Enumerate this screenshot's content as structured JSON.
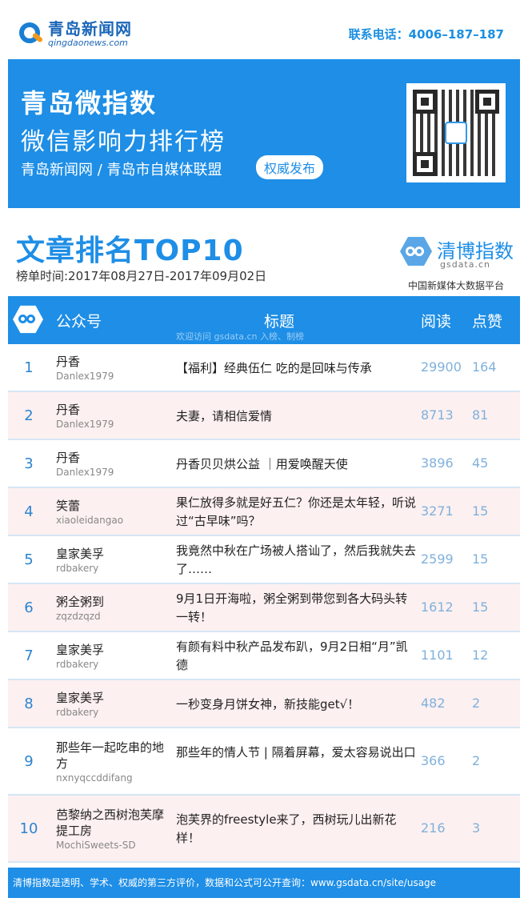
{
  "header": {
    "logo_cn": "青岛新闻网",
    "logo_en": "qingdaonews.com",
    "contact": "联系电话：4006–187–187"
  },
  "banner": {
    "title": "青岛微指数",
    "subtitle": "微信影响力排行榜",
    "org": "青岛新闻网 / 青岛市自媒体联盟",
    "badge": "权威发布"
  },
  "section": {
    "title": "文章排名TOP10",
    "date": "榜单时间:2017年08月27日-2017年09月02日",
    "brand_name": "清博指数",
    "brand_domain": "gsdata.cn",
    "brand_tag": "中国新媒体大数据平台"
  },
  "table": {
    "headers": {
      "account": "公众号",
      "title": "标题",
      "reads": "阅读",
      "likes": "点赞"
    },
    "watermark": "欢迎访问 gsdata.cn 入榜、制榜",
    "rows": [
      {
        "rank": "1",
        "name": "丹香",
        "id": "Danlex1979",
        "title": "【福利】经典伍仁 吃的是回味与传承",
        "reads": "29900",
        "likes": "164"
      },
      {
        "rank": "2",
        "name": "丹香",
        "id": "Danlex1979",
        "title": "夫妻，请相信爱情",
        "reads": "8713",
        "likes": "81"
      },
      {
        "rank": "3",
        "name": "丹香",
        "id": "Danlex1979",
        "title": "丹香贝贝烘公益 ｜用爱唤醒天使",
        "reads": "3896",
        "likes": "45"
      },
      {
        "rank": "4",
        "name": "笑蕾",
        "id": "xiaoleidangao",
        "title": "果仁放得多就是好五仁？你还是太年轻，听说过“古早味”吗？",
        "reads": "3271",
        "likes": "15"
      },
      {
        "rank": "5",
        "name": "皇家美孚",
        "id": "rdbakery",
        "title": "我竟然中秋在广场被人搭讪了，然后我就失去了……",
        "reads": "2599",
        "likes": "15"
      },
      {
        "rank": "6",
        "name": "粥全粥到",
        "id": "zqzdzqzd",
        "title": "9月1日开海啦，粥全粥到带您到各大码头转一转！",
        "reads": "1612",
        "likes": "15"
      },
      {
        "rank": "7",
        "name": "皇家美孚",
        "id": "rdbakery",
        "title": "有颜有料中秋产品发布趴，9月2日相“月”凯德",
        "reads": "1101",
        "likes": "12"
      },
      {
        "rank": "8",
        "name": "皇家美孚",
        "id": "rdbakery",
        "title": "一秒变身月饼女神，新技能get√！",
        "reads": "482",
        "likes": "2"
      },
      {
        "rank": "9",
        "name": "那些年一起吃串的地方",
        "id": "nxnyqccddifang",
        "title": "那些年的情人节 | 隔着屏幕，爱太容易说出口",
        "reads": "366",
        "likes": "2"
      },
      {
        "rank": "10",
        "name": "芭黎纳之西树泡芙摩提工房",
        "id": "MochiSweets-SD",
        "title": "泡芙界的freestyle来了，西树玩儿出新花样！",
        "reads": "216",
        "likes": "3"
      }
    ]
  },
  "footer": {
    "text": "清博指数是透明、学术、权威的第三方评价，数据和公式可公开查询：www.gsdata.cn/site/usage"
  }
}
